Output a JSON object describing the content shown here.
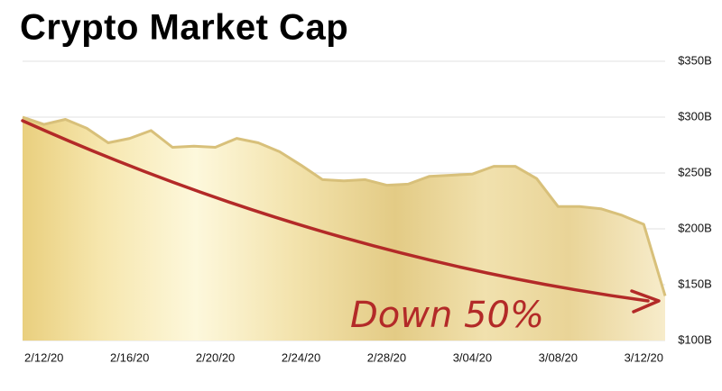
{
  "chart_data": {
    "type": "area",
    "title": "Crypto Market Cap",
    "annotation": "Down 50%",
    "categories": [
      null,
      "2/12/20",
      null,
      null,
      null,
      "2/16/20",
      null,
      null,
      null,
      "2/20/20",
      null,
      null,
      null,
      "2/24/20",
      null,
      null,
      null,
      "2/28/20",
      null,
      null,
      null,
      "3/04/20",
      null,
      null,
      null,
      "3/08/20",
      null,
      null,
      null,
      "3/12/20",
      null
    ],
    "values": [
      300,
      293.5,
      298,
      290,
      277,
      281,
      288,
      273,
      274,
      273,
      281,
      277,
      269,
      257,
      244,
      243,
      244,
      239,
      240,
      247,
      248,
      249,
      256,
      256,
      245,
      220,
      220,
      218,
      212,
      204,
      140
    ],
    "color": "#d8c07a",
    "ylim": [
      100,
      350
    ],
    "yticks": [
      {
        "value": 100,
        "label": "$100B"
      },
      {
        "value": 150,
        "label": "$150B"
      },
      {
        "value": 200,
        "label": "$200B"
      },
      {
        "value": 250,
        "label": "$250B"
      },
      {
        "value": 300,
        "label": "$300B"
      },
      {
        "value": 350,
        "label": "$350B"
      }
    ],
    "grid": true
  }
}
